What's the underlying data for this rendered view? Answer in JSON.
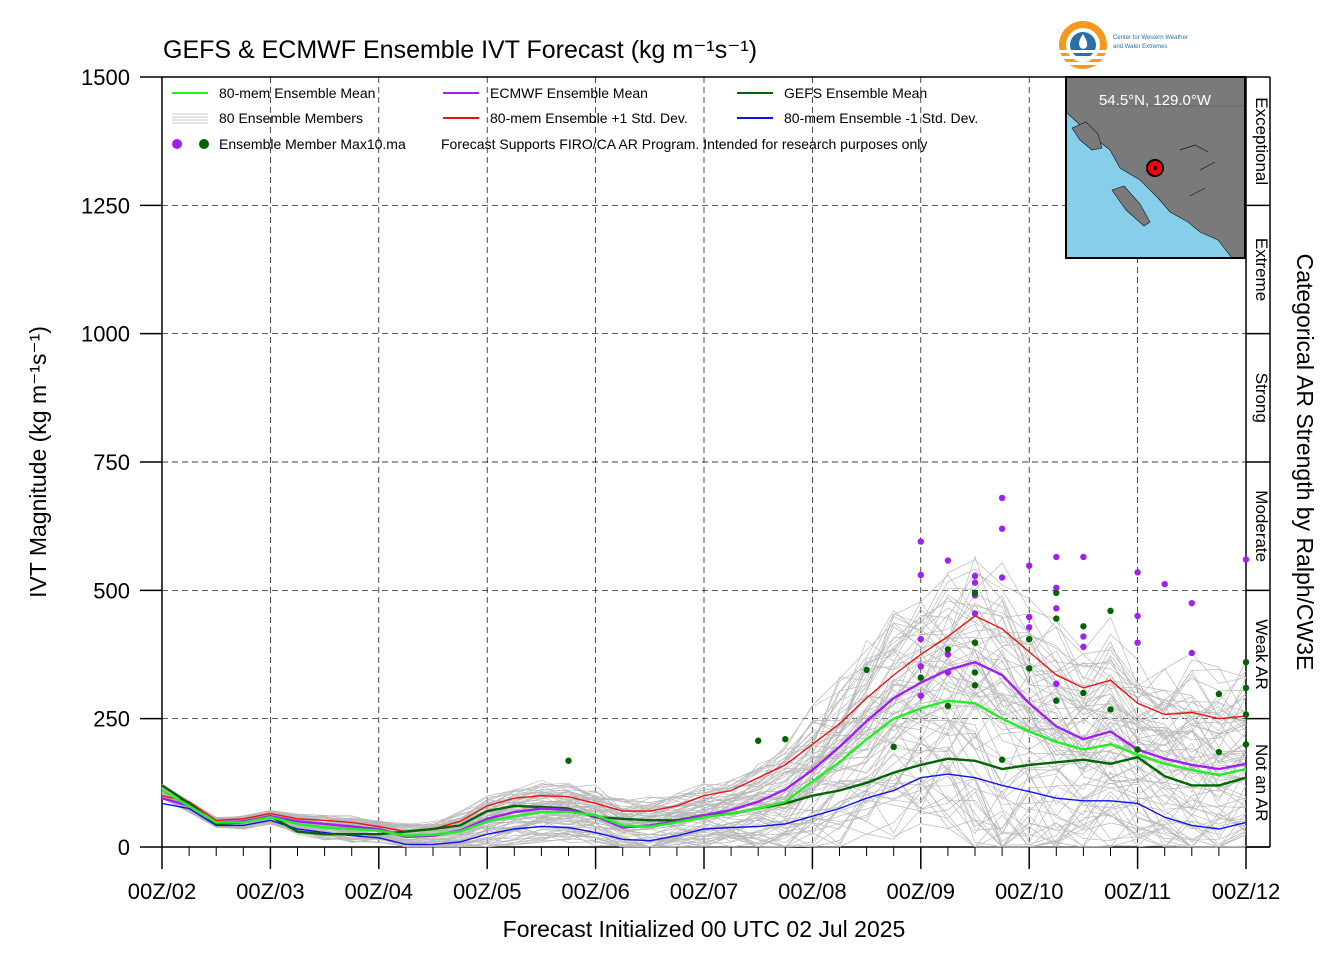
{
  "title": "GEFS & ECMWF Ensemble IVT Forecast (kg m⁻¹s⁻¹)",
  "logo": {
    "line1": "Center for Western Weather",
    "line2": "and Water Extremes"
  },
  "right_axis_label": "Categorical AR Strength by Ralph/CW3E",
  "map": {
    "location": "54.5°N, 129.0°W"
  },
  "colors": {
    "ensemble_mean": "#22ee22",
    "ecmwf_mean": "#a020f0",
    "gefs_mean": "#006400",
    "plus_std": "#ee1111",
    "minus_std": "#1111ee",
    "members": "#b8b8b8",
    "ecmwf_max": "#a020f0",
    "gefs_max": "#006400"
  },
  "legend": {
    "ensemble_mean": "80-mem Ensemble Mean",
    "ecmwf_mean": "ECMWF Ensemble Mean",
    "gefs_mean": "GEFS Ensemble Mean",
    "members": "80 Ensemble Members",
    "plus_std": "80-mem Ensemble +1 Std. Dev.",
    "minus_std": "80-mem Ensemble -1 Std. Dev.",
    "max10": "Ensemble Member Max10.ma",
    "disclaimer": "Forecast Supports FIRO/CA AR Program. Intended for research purposes only"
  },
  "chart_data": {
    "type": "line",
    "title": "GEFS & ECMWF Ensemble IVT Forecast (kg m⁻¹s⁻¹)",
    "xlabel": "Forecast Initialized 00 UTC 02 Jul 2025",
    "ylabel": "IVT Magnitude (kg m⁻¹s⁻¹)",
    "y2label": "Categorical AR Strength by Ralph/CW3E",
    "xlim": [
      "2025-07-02T00",
      "2025-07-12T00"
    ],
    "ylim": [
      0,
      1500
    ],
    "grid": true,
    "legend_position": "top-left",
    "x_tick_labels": [
      "00Z/02",
      "00Z/03",
      "00Z/04",
      "00Z/05",
      "00Z/06",
      "00Z/07",
      "00Z/08",
      "00Z/09",
      "00Z/10",
      "00Z/11",
      "00Z/12"
    ],
    "y_ticks": [
      0,
      250,
      500,
      750,
      1000,
      1250,
      1500
    ],
    "categories": [
      {
        "label": "Not an AR",
        "range": [
          0,
          250
        ]
      },
      {
        "label": "Weak AR",
        "range": [
          250,
          500
        ]
      },
      {
        "label": "Moderate",
        "range": [
          500,
          750
        ]
      },
      {
        "label": "Strong",
        "range": [
          750,
          1000
        ]
      },
      {
        "label": "Extreme",
        "range": [
          1000,
          1250
        ]
      },
      {
        "label": "Exceptional",
        "range": [
          1250,
          1500
        ]
      }
    ],
    "x": [
      "02/00",
      "02/06",
      "02/12",
      "02/18",
      "03/00",
      "03/06",
      "03/12",
      "03/18",
      "04/00",
      "04/06",
      "04/12",
      "04/18",
      "05/00",
      "05/06",
      "05/12",
      "05/18",
      "06/00",
      "06/06",
      "06/12",
      "06/18",
      "07/00",
      "07/06",
      "07/12",
      "07/18",
      "08/00",
      "08/06",
      "08/12",
      "08/18",
      "09/00",
      "09/06",
      "09/12",
      "09/18",
      "10/00",
      "10/06",
      "10/12",
      "10/18",
      "11/00",
      "11/06",
      "11/12",
      "11/18",
      "12/00"
    ],
    "series": [
      {
        "name": "80-mem Ensemble Mean",
        "values": [
          110,
          80,
          48,
          48,
          58,
          45,
          38,
          35,
          32,
          22,
          24,
          30,
          50,
          60,
          68,
          68,
          62,
          42,
          40,
          48,
          58,
          65,
          75,
          88,
          128,
          165,
          210,
          250,
          270,
          285,
          280,
          250,
          225,
          205,
          190,
          200,
          180,
          162,
          150,
          140,
          152
        ]
      },
      {
        "name": "ECMWF Ensemble Mean",
        "values": [
          95,
          80,
          48,
          50,
          60,
          50,
          45,
          40,
          35,
          20,
          22,
          32,
          55,
          68,
          75,
          72,
          60,
          38,
          42,
          50,
          62,
          72,
          88,
          112,
          150,
          195,
          245,
          290,
          320,
          345,
          360,
          335,
          280,
          235,
          210,
          225,
          190,
          172,
          160,
          152,
          162
        ]
      },
      {
        "name": "GEFS Ensemble Mean",
        "values": [
          120,
          85,
          45,
          48,
          60,
          30,
          25,
          25,
          25,
          30,
          35,
          42,
          70,
          80,
          78,
          75,
          58,
          55,
          52,
          52,
          62,
          65,
          75,
          85,
          100,
          110,
          125,
          145,
          160,
          172,
          168,
          152,
          160,
          165,
          170,
          162,
          175,
          138,
          120,
          120,
          135
        ]
      },
      {
        "name": "80-mem Ensemble +1 Std. Dev.",
        "values": [
          100,
          88,
          52,
          55,
          65,
          55,
          52,
          48,
          40,
          30,
          35,
          50,
          80,
          95,
          100,
          98,
          85,
          70,
          70,
          80,
          100,
          110,
          135,
          160,
          200,
          240,
          290,
          335,
          375,
          410,
          450,
          425,
          380,
          335,
          310,
          325,
          280,
          258,
          262,
          250,
          255
        ]
      },
      {
        "name": "80-mem Ensemble -1 Std. Dev.",
        "values": [
          85,
          75,
          42,
          42,
          52,
          35,
          28,
          22,
          18,
          5,
          5,
          10,
          25,
          35,
          40,
          38,
          28,
          15,
          12,
          22,
          35,
          38,
          40,
          45,
          60,
          75,
          95,
          110,
          135,
          142,
          135,
          120,
          108,
          95,
          90,
          90,
          85,
          58,
          42,
          35,
          48
        ]
      }
    ],
    "ecmwf_max10": [
      {
        "x": "09/00",
        "y": 595
      },
      {
        "x": "09/00",
        "y": 530
      },
      {
        "x": "09/00",
        "y": 405
      },
      {
        "x": "09/00",
        "y": 352
      },
      {
        "x": "09/00",
        "y": 295
      },
      {
        "x": "09/06",
        "y": 558
      },
      {
        "x": "09/06",
        "y": 375
      },
      {
        "x": "09/06",
        "y": 340
      },
      {
        "x": "09/12",
        "y": 528
      },
      {
        "x": "09/12",
        "y": 515
      },
      {
        "x": "09/12",
        "y": 490
      },
      {
        "x": "09/12",
        "y": 455
      },
      {
        "x": "09/18",
        "y": 680
      },
      {
        "x": "09/18",
        "y": 620
      },
      {
        "x": "09/18",
        "y": 525
      },
      {
        "x": "10/00",
        "y": 548
      },
      {
        "x": "10/00",
        "y": 448
      },
      {
        "x": "10/00",
        "y": 428
      },
      {
        "x": "10/06",
        "y": 565
      },
      {
        "x": "10/06",
        "y": 505
      },
      {
        "x": "10/06",
        "y": 465
      },
      {
        "x": "10/06",
        "y": 318
      },
      {
        "x": "10/12",
        "y": 565
      },
      {
        "x": "10/12",
        "y": 410
      },
      {
        "x": "10/12",
        "y": 390
      },
      {
        "x": "11/00",
        "y": 535
      },
      {
        "x": "11/00",
        "y": 450
      },
      {
        "x": "11/00",
        "y": 398
      },
      {
        "x": "11/06",
        "y": 512
      },
      {
        "x": "11/12",
        "y": 475
      },
      {
        "x": "11/12",
        "y": 378
      },
      {
        "x": "12/00",
        "y": 560
      }
    ],
    "gefs_max10": [
      {
        "x": "05/18",
        "y": 168
      },
      {
        "x": "07/12",
        "y": 207
      },
      {
        "x": "07/18",
        "y": 210
      },
      {
        "x": "08/12",
        "y": 345
      },
      {
        "x": "08/18",
        "y": 195
      },
      {
        "x": "09/00",
        "y": 330
      },
      {
        "x": "09/06",
        "y": 385
      },
      {
        "x": "09/06",
        "y": 275
      },
      {
        "x": "09/12",
        "y": 495
      },
      {
        "x": "09/12",
        "y": 398
      },
      {
        "x": "09/12",
        "y": 340
      },
      {
        "x": "09/12",
        "y": 315
      },
      {
        "x": "09/18",
        "y": 170
      },
      {
        "x": "10/00",
        "y": 348
      },
      {
        "x": "10/00",
        "y": 405
      },
      {
        "x": "10/06",
        "y": 495
      },
      {
        "x": "10/06",
        "y": 445
      },
      {
        "x": "10/06",
        "y": 285
      },
      {
        "x": "10/12",
        "y": 430
      },
      {
        "x": "10/12",
        "y": 300
      },
      {
        "x": "10/18",
        "y": 460
      },
      {
        "x": "10/18",
        "y": 268
      },
      {
        "x": "11/00",
        "y": 190
      },
      {
        "x": "11/18",
        "y": 185
      },
      {
        "x": "11/18",
        "y": 298
      },
      {
        "x": "12/00",
        "y": 310
      },
      {
        "x": "12/00",
        "y": 258
      },
      {
        "x": "12/00",
        "y": 360
      },
      {
        "x": "12/00",
        "y": 200
      }
    ]
  }
}
